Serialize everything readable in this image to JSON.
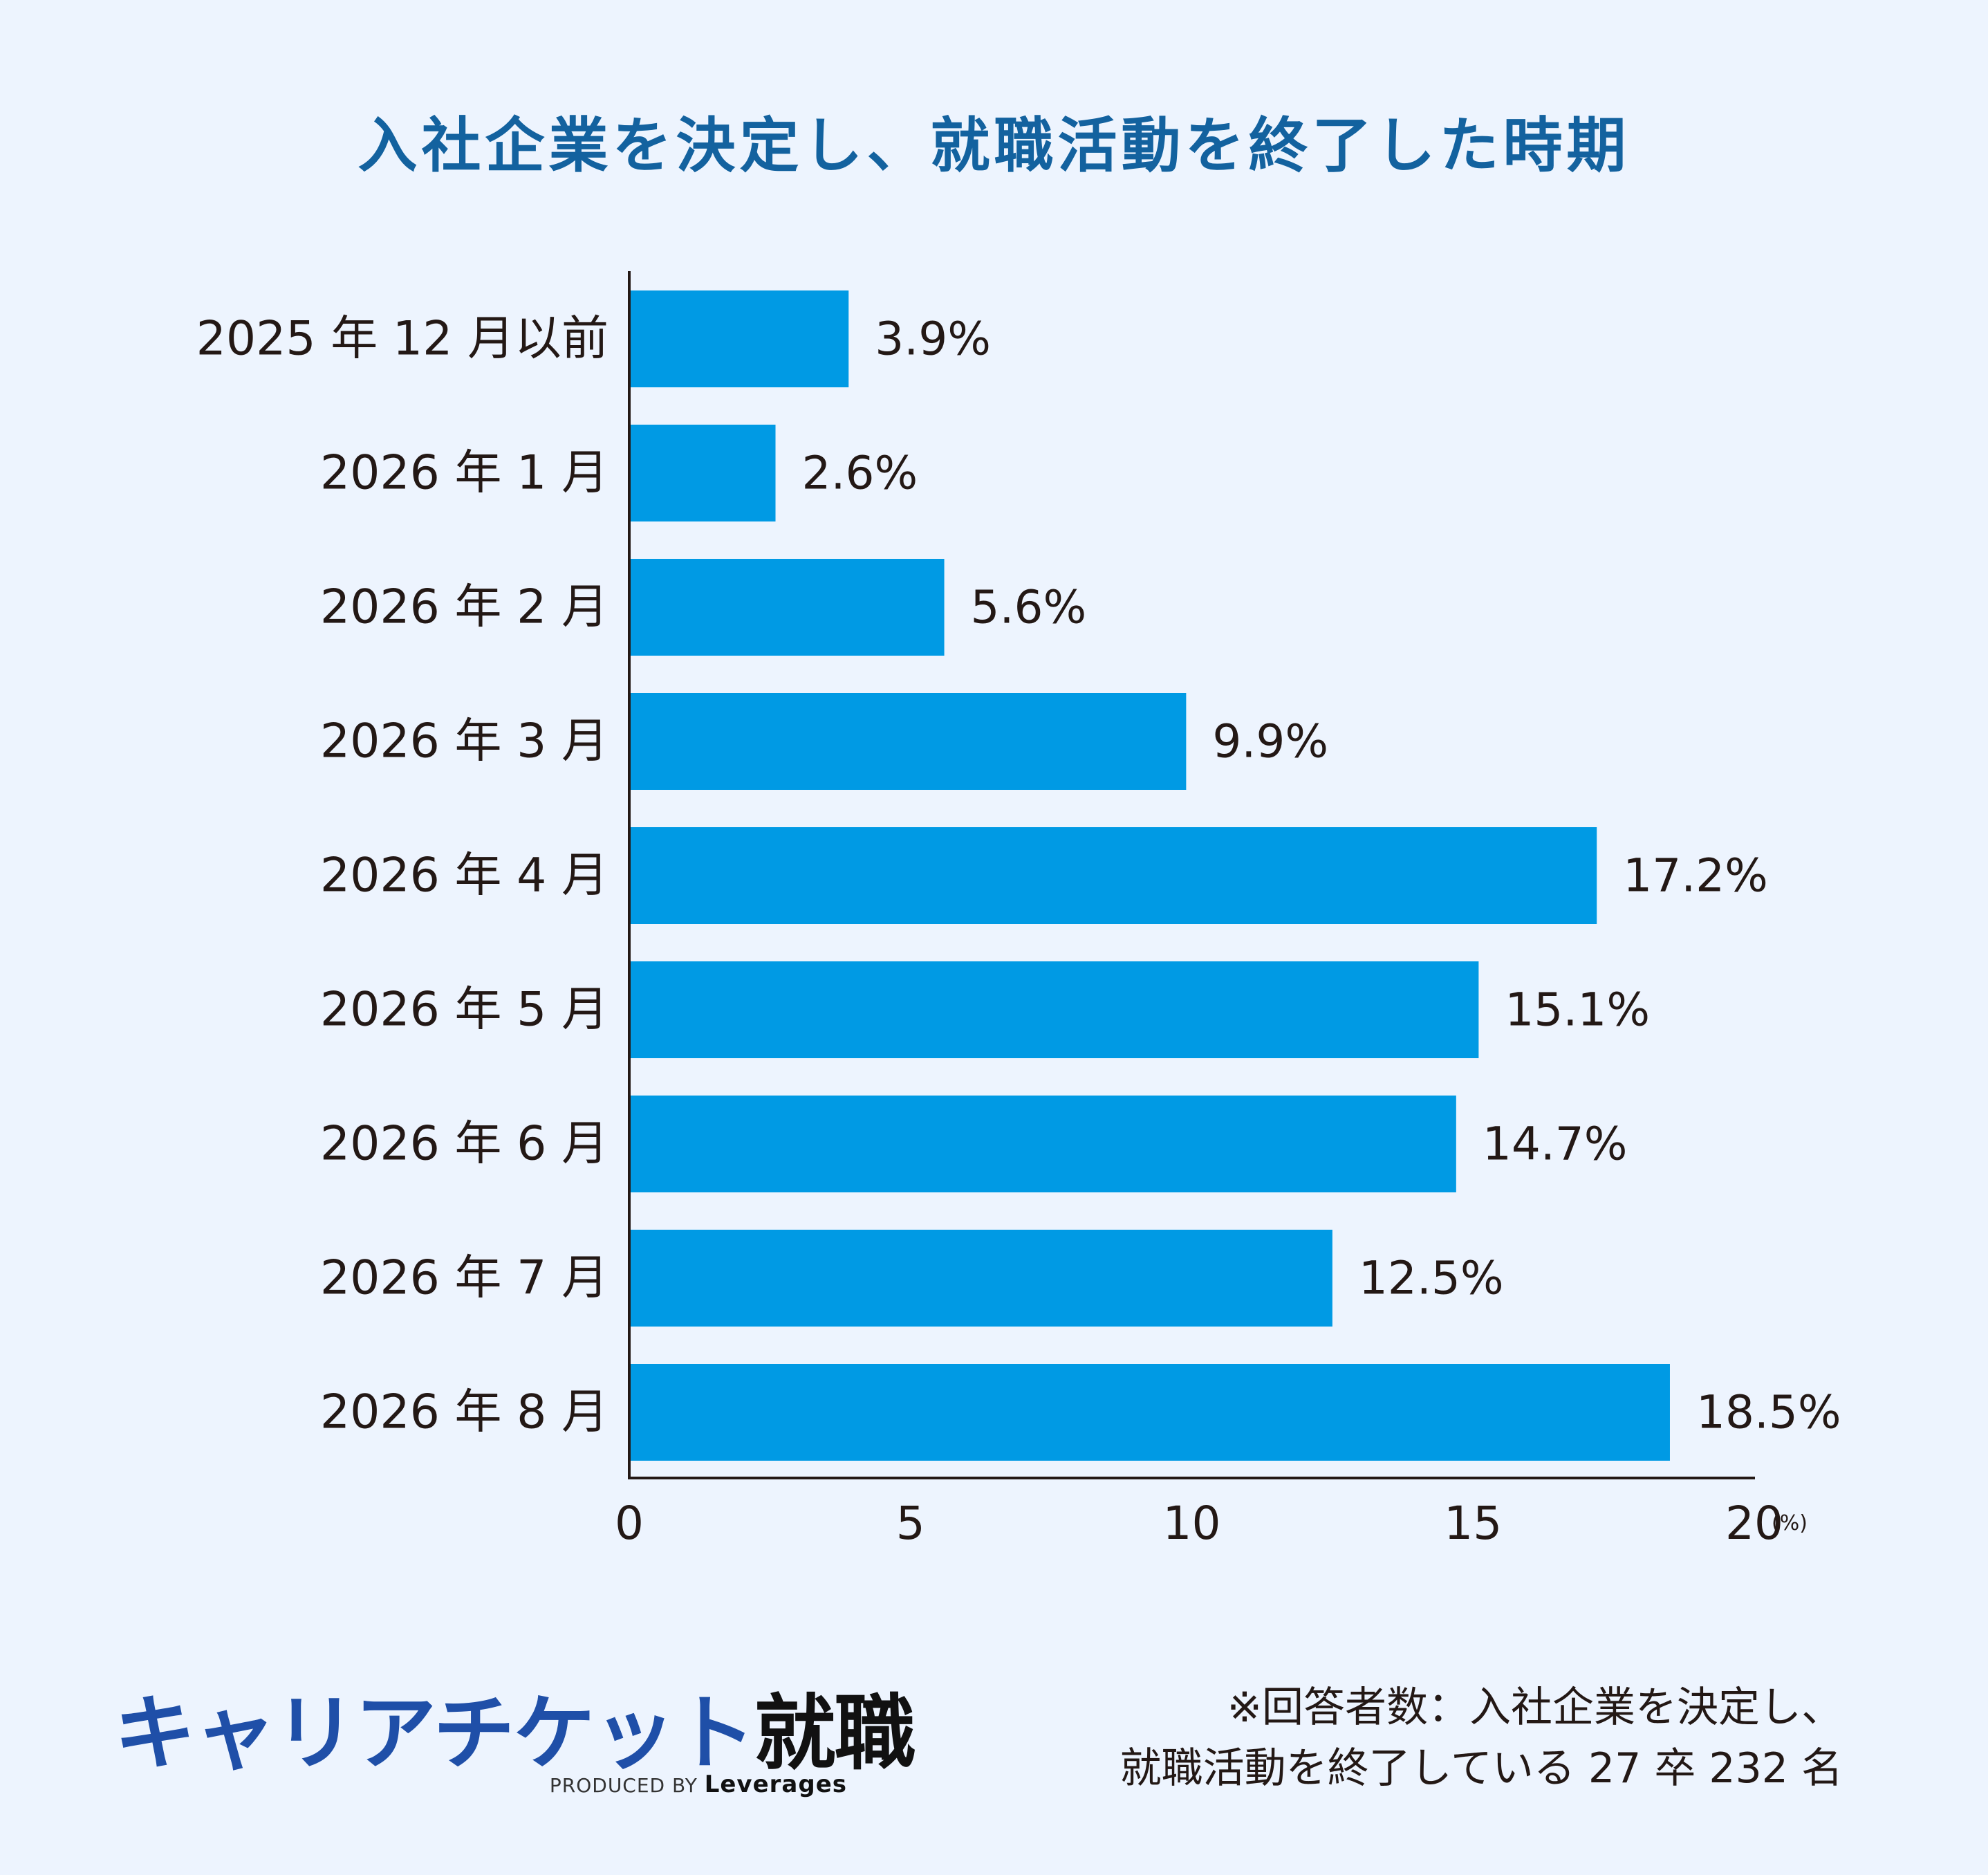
{
  "title": "入社企業を決定し、就職活動を終了した時期",
  "colors": {
    "background": "#edf4fe",
    "title": "#13629f",
    "bar": "#009ae4",
    "axis": "#231815",
    "text": "#231815",
    "brand": "#1f4fa8"
  },
  "chart_data": {
    "type": "bar",
    "orientation": "horizontal",
    "categories": [
      "2025 年 12 月以前",
      "2026 年 1 月",
      "2026 年 2 月",
      "2026 年 3 月",
      "2026 年 4 月",
      "2026 年 5 月",
      "2026 年 6 月",
      "2026 年 7 月",
      "2026 年 8 月"
    ],
    "values": [
      3.9,
      2.6,
      5.6,
      9.9,
      17.2,
      15.1,
      14.7,
      12.5,
      18.5
    ],
    "value_labels": [
      "3.9%",
      "2.6%",
      "5.6%",
      "9.9%",
      "17.2%",
      "15.1%",
      "14.7%",
      "12.5%",
      "18.5%"
    ],
    "x_ticks": [
      0,
      5,
      10,
      15,
      20
    ],
    "xlim": [
      0,
      20
    ],
    "x_unit": "(%)",
    "grid": false,
    "legend": "none"
  },
  "brand": {
    "name_main": "キャリアチケット",
    "name_strong": "就職",
    "produced_by": "PRODUCED BY",
    "maker": "Leverages"
  },
  "footnote": {
    "line1": "※回答者数：入社企業を決定し、",
    "line2": "就職活動を終了している 27 卒 232 名"
  }
}
